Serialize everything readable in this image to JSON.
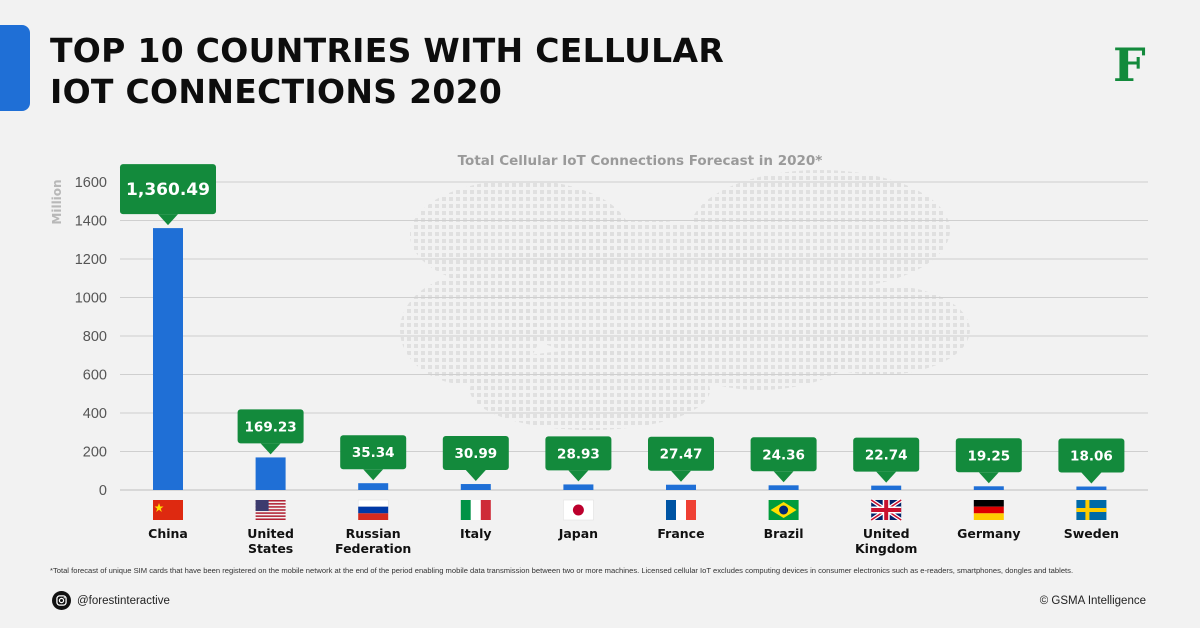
{
  "header": {
    "title_line1": "TOP 10 COUNTRIES WITH CELLULAR",
    "title_line2": "IOT CONNECTIONS 2020",
    "logo_letter": "F"
  },
  "chart_data": {
    "type": "bar",
    "title": "Total Cellular IoT Connections Forecast in 2020*",
    "ylabel": "Million",
    "ylim": [
      0,
      1600
    ],
    "yticks": [
      0,
      200,
      400,
      600,
      800,
      1000,
      1200,
      1400,
      1600
    ],
    "grid": true,
    "categories": [
      "China",
      "United States",
      "Russian Federation",
      "Italy",
      "Japan",
      "France",
      "Brazil",
      "United Kingdom",
      "Germany",
      "Sweden"
    ],
    "category_lines": [
      [
        "China"
      ],
      [
        "United",
        "States"
      ],
      [
        "Russian",
        "Federation"
      ],
      [
        "Italy"
      ],
      [
        "Japan"
      ],
      [
        "France"
      ],
      [
        "Brazil"
      ],
      [
        "United",
        "Kingdom"
      ],
      [
        "Germany"
      ],
      [
        "Sweden"
      ]
    ],
    "flags": [
      "china-flag",
      "usa-flag",
      "russia-flag",
      "italy-flag",
      "japan-flag",
      "france-flag",
      "brazil-flag",
      "uk-flag",
      "germany-flag",
      "sweden-flag"
    ],
    "values": [
      1360.49,
      169.23,
      35.34,
      30.99,
      28.93,
      27.47,
      24.36,
      22.74,
      19.25,
      18.06
    ],
    "value_labels": [
      "1,360.49",
      "169.23",
      "35.34",
      "30.99",
      "28.93",
      "27.47",
      "24.36",
      "22.74",
      "19.25",
      "18.06"
    ],
    "colors": {
      "bar": "#1f6fd6",
      "label_bg": "#138a3c",
      "grid": "#cfcfcf"
    }
  },
  "footer": {
    "footnote": "*Total forecast of unique SIM cards that have been registered on the mobile network at the end of the period enabling mobile data transmission between two or more machines. Licensed cellular IoT excludes computing devices in consumer electronics such as e-readers, smartphones, dongles and tablets.",
    "handle": "@forestinteractive",
    "social_icon": "instagram-icon",
    "source": "© GSMA Intelligence"
  }
}
